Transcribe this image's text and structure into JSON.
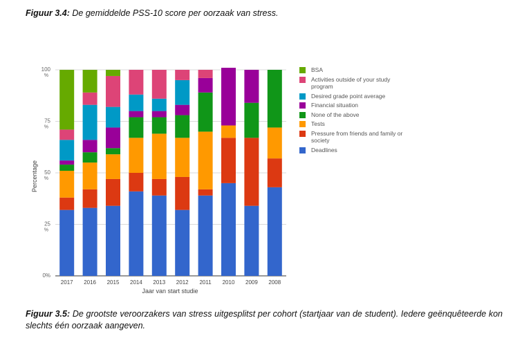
{
  "caption_top": {
    "label": "Figuur 3.4:",
    "text": " De gemiddelde PSS-10 score per oorzaak van stress."
  },
  "caption_bottom": {
    "label": "Figuur 3.5:",
    "text": " De grootste veroorzakers van stress uitgesplitst per cohort (startjaar van de student). Iedere geënquêteerde kon slechts één oorzaak aangeven."
  },
  "chart_data": {
    "type": "bar",
    "stacked": true,
    "xlabel": "Jaar van start studie",
    "ylabel": "Percentage",
    "ylim": [
      0,
      100
    ],
    "yticks": [
      {
        "value": 0,
        "label": "0%"
      },
      {
        "value": 25,
        "label": "25 %"
      },
      {
        "value": 50,
        "label": "50 %"
      },
      {
        "value": 75,
        "label": "75 %"
      },
      {
        "value": 100,
        "label": "100 %"
      }
    ],
    "categories": [
      "2017",
      "2016",
      "2015",
      "2014",
      "2013",
      "2012",
      "2011",
      "2010",
      "2009",
      "2008"
    ],
    "series": [
      {
        "name": "Deadlines",
        "color": "#3366cc",
        "values": [
          32,
          33,
          34,
          41,
          39,
          32,
          39,
          45,
          34,
          43
        ]
      },
      {
        "name": "Pressure from friends and family or society",
        "color": "#dc3912",
        "values": [
          6,
          9,
          13,
          9,
          8,
          16,
          3,
          22,
          33,
          14
        ]
      },
      {
        "name": "Tests",
        "color": "#ff9900",
        "values": [
          13,
          13,
          12,
          17,
          22,
          19,
          28,
          6,
          0,
          15
        ]
      },
      {
        "name": "None of the above",
        "color": "#109618",
        "values": [
          3,
          5,
          3,
          10,
          8,
          11,
          19,
          0,
          17,
          28
        ]
      },
      {
        "name": "Financial situation",
        "color": "#990099",
        "values": [
          2,
          6,
          10,
          3,
          3,
          5,
          7,
          28,
          16,
          0
        ]
      },
      {
        "name": "Desired grade point average",
        "color": "#0099c6",
        "values": [
          10,
          17,
          10,
          8,
          6,
          12,
          0,
          0,
          0,
          0
        ]
      },
      {
        "name": "Activities outside of your study program",
        "color": "#dd4477",
        "values": [
          5,
          6,
          15,
          12,
          14,
          5,
          4,
          0,
          0,
          0
        ]
      },
      {
        "name": "BSA",
        "color": "#66aa00",
        "values": [
          29,
          11,
          3,
          0,
          0,
          0,
          0,
          0,
          0,
          0
        ]
      }
    ],
    "legend": [
      {
        "label": "BSA",
        "color": "#66aa00"
      },
      {
        "label": "Activities outside of your study program",
        "color": "#dd4477"
      },
      {
        "label": "Desired grade point average",
        "color": "#0099c6"
      },
      {
        "label": "Financial situation",
        "color": "#990099"
      },
      {
        "label": "None of the above",
        "color": "#109618"
      },
      {
        "label": "Tests",
        "color": "#ff9900"
      },
      {
        "label": "Pressure from friends and family or society",
        "color": "#dc3912"
      },
      {
        "label": "Deadlines",
        "color": "#3366cc"
      }
    ]
  }
}
